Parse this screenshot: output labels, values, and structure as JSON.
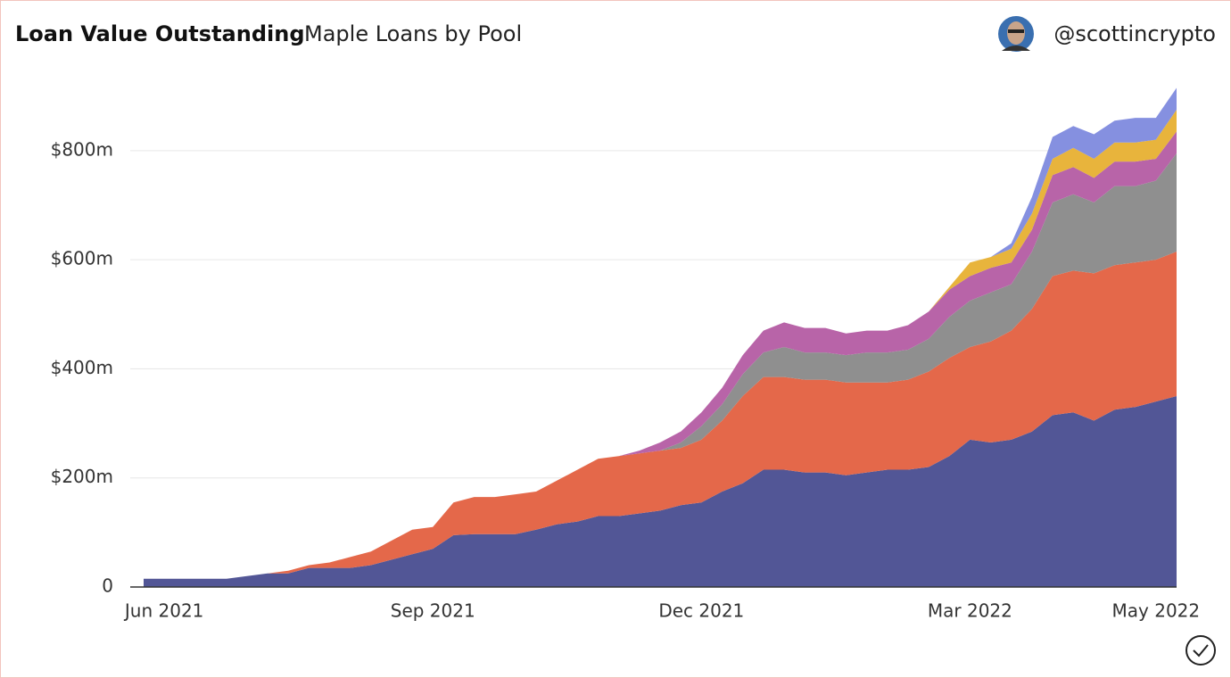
{
  "header": {
    "title": "Loan Value Outstanding",
    "subtitle": "Maple Loans by Pool",
    "author": "@scottincrypto"
  },
  "chart_data": {
    "type": "stacked-area",
    "categories": [
      null,
      "Jun 2021",
      null,
      null,
      null,
      null,
      null,
      null,
      null,
      null,
      null,
      null,
      null,
      null,
      "Sep 2021",
      null,
      null,
      null,
      null,
      null,
      null,
      null,
      null,
      null,
      null,
      null,
      null,
      "Dec 2021",
      null,
      null,
      null,
      null,
      null,
      null,
      null,
      null,
      null,
      null,
      null,
      null,
      "Mar 2022",
      null,
      null,
      null,
      null,
      null,
      null,
      null,
      null,
      "May 2022",
      null
    ],
    "series": [
      {
        "color": "#525696",
        "values": [
          15,
          15,
          15,
          15,
          15,
          20,
          25,
          25,
          35,
          35,
          35,
          40,
          50,
          60,
          70,
          95,
          97,
          97,
          97,
          105,
          115,
          120,
          130,
          130,
          135,
          140,
          150,
          155,
          175,
          190,
          215,
          215,
          210,
          210,
          205,
          210,
          215,
          215,
          220,
          240,
          270,
          265,
          270,
          285,
          315,
          320,
          305,
          325,
          330,
          340,
          350
        ]
      },
      {
        "color": "#e4684a",
        "values": [
          0,
          0,
          0,
          0,
          0,
          0,
          0,
          5,
          5,
          10,
          20,
          25,
          35,
          45,
          40,
          60,
          68,
          68,
          73,
          70,
          80,
          95,
          105,
          110,
          110,
          110,
          105,
          115,
          130,
          160,
          170,
          170,
          170,
          170,
          170,
          165,
          160,
          165,
          175,
          180,
          170,
          185,
          200,
          225,
          255,
          260,
          270,
          265,
          265,
          260,
          265
        ]
      },
      {
        "color": "#8f8f8f",
        "values": [
          0,
          0,
          0,
          0,
          0,
          0,
          0,
          0,
          0,
          0,
          0,
          0,
          0,
          0,
          0,
          0,
          0,
          0,
          0,
          0,
          0,
          0,
          0,
          0,
          0,
          0,
          10,
          25,
          30,
          40,
          45,
          55,
          50,
          50,
          50,
          55,
          55,
          55,
          60,
          75,
          85,
          90,
          85,
          105,
          135,
          140,
          130,
          145,
          140,
          145,
          180
        ]
      },
      {
        "color": "#b864a8",
        "values": [
          0,
          0,
          0,
          0,
          0,
          0,
          0,
          0,
          0,
          0,
          0,
          0,
          0,
          0,
          0,
          0,
          0,
          0,
          0,
          0,
          0,
          0,
          0,
          0,
          5,
          15,
          20,
          25,
          30,
          35,
          40,
          45,
          45,
          45,
          40,
          40,
          40,
          45,
          50,
          50,
          45,
          45,
          40,
          40,
          50,
          50,
          45,
          45,
          45,
          40,
          40
        ]
      },
      {
        "color": "#e8b43c",
        "values": [
          0,
          0,
          0,
          0,
          0,
          0,
          0,
          0,
          0,
          0,
          0,
          0,
          0,
          0,
          0,
          0,
          0,
          0,
          0,
          0,
          0,
          0,
          0,
          0,
          0,
          0,
          0,
          0,
          0,
          0,
          0,
          0,
          0,
          0,
          0,
          0,
          0,
          0,
          0,
          5,
          25,
          20,
          25,
          30,
          30,
          35,
          35,
          35,
          35,
          35,
          40
        ]
      },
      {
        "color": "#8590e0",
        "values": [
          0,
          0,
          0,
          0,
          0,
          0,
          0,
          0,
          0,
          0,
          0,
          0,
          0,
          0,
          0,
          0,
          0,
          0,
          0,
          0,
          0,
          0,
          0,
          0,
          0,
          0,
          0,
          0,
          0,
          0,
          0,
          0,
          0,
          0,
          0,
          0,
          0,
          0,
          0,
          0,
          0,
          0,
          10,
          30,
          40,
          40,
          45,
          40,
          45,
          40,
          40
        ]
      }
    ],
    "ylim": [
      0,
      960
    ],
    "yticks": [
      0,
      {
        "value": 200,
        "label": "$200m"
      },
      {
        "value": 400,
        "label": "$400m"
      },
      {
        "value": 600,
        "label": "$600m"
      },
      {
        "value": 800,
        "label": "$800m"
      }
    ],
    "grid": true
  }
}
